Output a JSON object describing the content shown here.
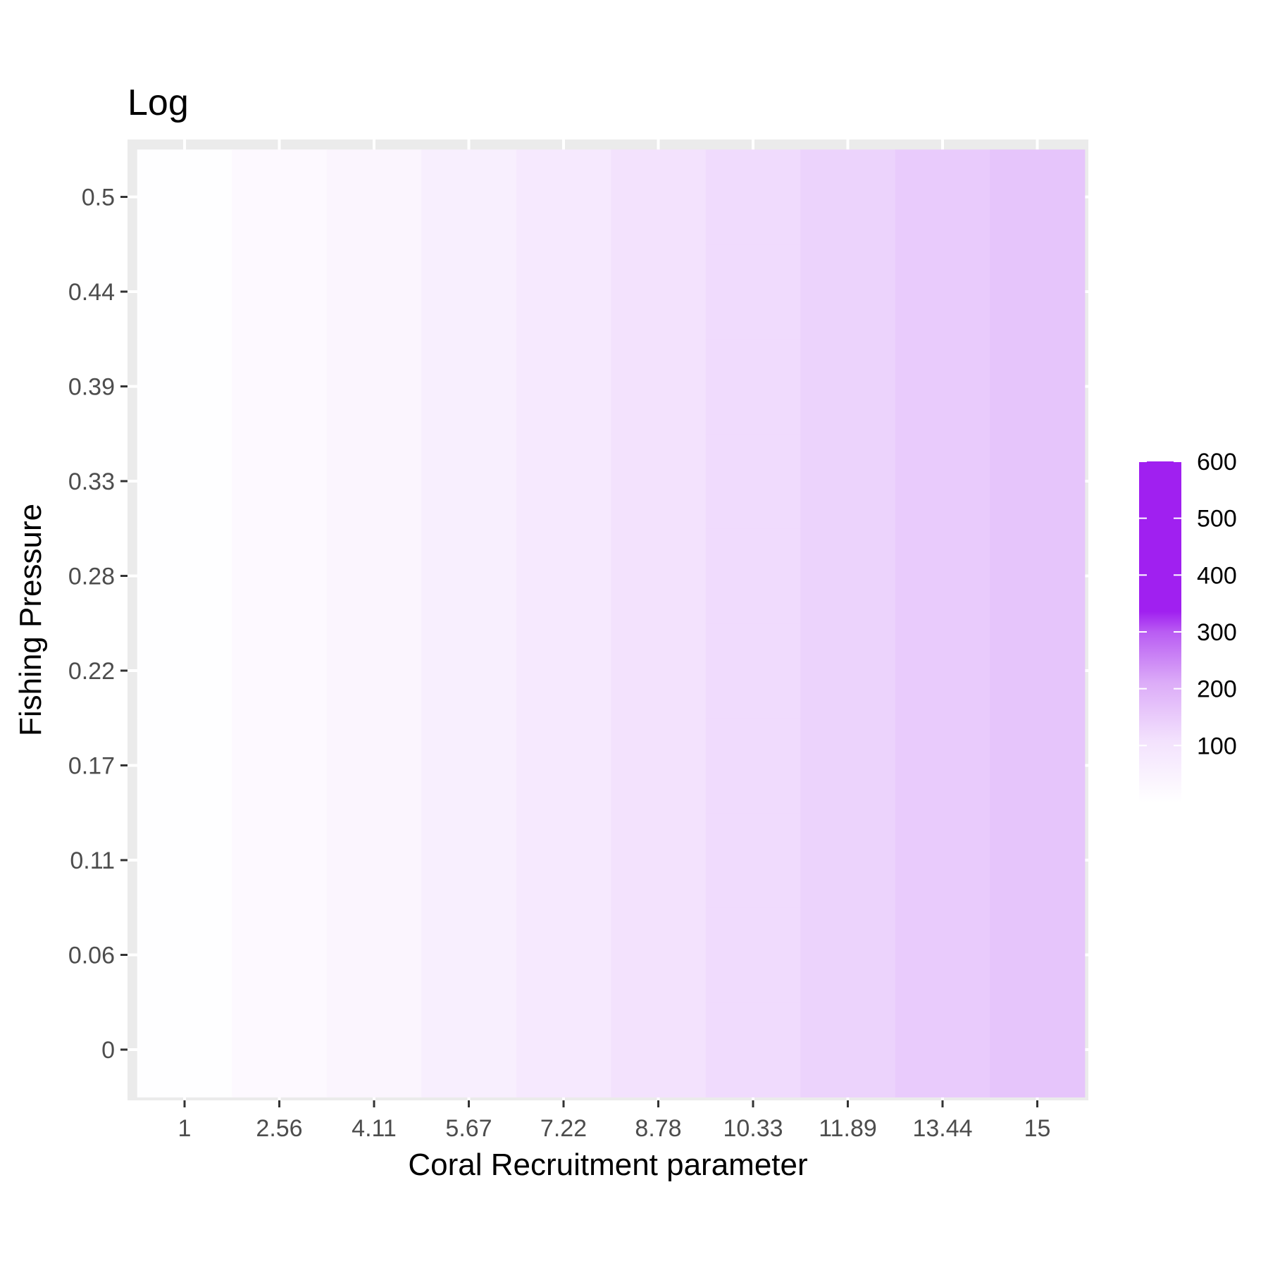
{
  "chart_data": {
    "type": "heatmap",
    "title": "Log",
    "xlabel": "Coral Recruitment parameter",
    "ylabel": "Fishing Pressure",
    "x": [
      "1",
      "2.56",
      "4.11",
      "5.67",
      "7.22",
      "8.78",
      "10.33",
      "11.89",
      "13.44",
      "15"
    ],
    "y": [
      "0",
      "0.06",
      "0.11",
      "0.17",
      "0.22",
      "0.28",
      "0.33",
      "0.39",
      "0.44",
      "0.5"
    ],
    "values_by_x": [
      2,
      10,
      20,
      32,
      46,
      62,
      80,
      100,
      118,
      135
    ],
    "values_note_units": "same value for every y",
    "legend": {
      "ticks": [
        100,
        200,
        300,
        400,
        500,
        600
      ],
      "min": 0,
      "max": 600,
      "position": "right"
    },
    "colors": {
      "low": "#ffffff",
      "high": "#a020f0",
      "panel_background": "#ebebeb",
      "grid": "#ffffff"
    }
  }
}
